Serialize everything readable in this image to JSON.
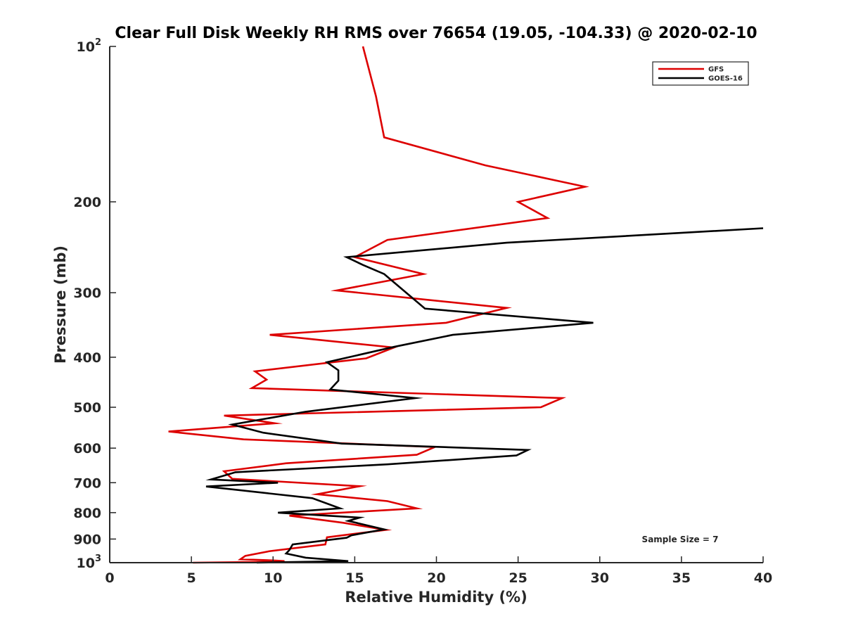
{
  "chart_data": {
    "type": "line",
    "title": "Clear Full Disk Weekly RH RMS over 76654 (19.05, -104.33) @ 2020-02-10",
    "xlabel": "Relative Humidity (%)",
    "ylabel": "Pressure (mb)",
    "xlim": [
      0,
      40
    ],
    "ylim": [
      100,
      1000
    ],
    "yscale": "log",
    "y_reversed": true,
    "xticks": [
      0,
      5,
      10,
      15,
      20,
      25,
      30,
      35,
      40
    ],
    "xtick_labels": [
      "0",
      "5",
      "10",
      "15",
      "20",
      "25",
      "30",
      "35",
      "40"
    ],
    "yticks": [
      100,
      200,
      300,
      400,
      500,
      600,
      700,
      800,
      900,
      1000
    ],
    "ytick_labels": [
      {
        "base": "10",
        "exp": "2"
      },
      {
        "base": "200",
        "exp": ""
      },
      {
        "base": "300",
        "exp": ""
      },
      {
        "base": "400",
        "exp": ""
      },
      {
        "base": "500",
        "exp": ""
      },
      {
        "base": "600",
        "exp": ""
      },
      {
        "base": "700",
        "exp": ""
      },
      {
        "base": "800",
        "exp": ""
      },
      {
        "base": "900",
        "exp": ""
      },
      {
        "base": "10",
        "exp": "3"
      }
    ],
    "legend_position": "top-right",
    "annotation": "Sample Size = 7",
    "series": [
      {
        "name": "GFS",
        "color": "#dd0000",
        "points": [
          [
            15.5,
            100
          ],
          [
            16.3,
            125
          ],
          [
            16.8,
            150
          ],
          [
            23.0,
            170
          ],
          [
            29.1,
            187
          ],
          [
            25.0,
            200
          ],
          [
            26.8,
            215
          ],
          [
            17.0,
            237
          ],
          [
            15.0,
            256
          ],
          [
            19.2,
            276
          ],
          [
            13.9,
            297
          ],
          [
            24.3,
            321
          ],
          [
            20.6,
            343
          ],
          [
            9.8,
            362
          ],
          [
            17.4,
            383
          ],
          [
            15.7,
            402
          ],
          [
            8.9,
            426
          ],
          [
            9.6,
            442
          ],
          [
            8.7,
            459
          ],
          [
            27.7,
            480
          ],
          [
            26.4,
            500
          ],
          [
            7.0,
            519
          ],
          [
            10.1,
            537
          ],
          [
            3.6,
            557
          ],
          [
            8.2,
            577
          ],
          [
            19.9,
            597
          ],
          [
            18.8,
            618
          ],
          [
            10.8,
            642
          ],
          [
            7.0,
            665
          ],
          [
            7.5,
            688
          ],
          [
            15.3,
            711
          ],
          [
            12.7,
            737
          ],
          [
            17.0,
            760
          ],
          [
            18.8,
            785
          ],
          [
            11.0,
            811
          ],
          [
            14.3,
            837
          ],
          [
            16.9,
            864
          ],
          [
            13.3,
            893
          ],
          [
            13.2,
            922
          ],
          [
            9.8,
            950
          ],
          [
            8.3,
            970
          ],
          [
            8.0,
            985
          ],
          [
            10.0,
            990
          ],
          [
            10.7,
            993
          ],
          [
            10.0,
            996
          ],
          [
            5.1,
            1000
          ]
        ]
      },
      {
        "name": "GOES-16",
        "color": "#000000",
        "points": [
          [
            40.0,
            225
          ],
          [
            24.3,
            240
          ],
          [
            14.5,
            256
          ],
          [
            15.5,
            265
          ],
          [
            16.8,
            276
          ],
          [
            19.3,
            322
          ],
          [
            29.6,
            343
          ],
          [
            21.0,
            362
          ],
          [
            17.4,
            382
          ],
          [
            13.3,
            409
          ],
          [
            14.0,
            424
          ],
          [
            14.0,
            444
          ],
          [
            13.5,
            462
          ],
          [
            18.7,
            480
          ],
          [
            12.0,
            510
          ],
          [
            7.5,
            540
          ],
          [
            9.4,
            560
          ],
          [
            14.2,
            588
          ],
          [
            25.6,
            605
          ],
          [
            24.9,
            620
          ],
          [
            17.0,
            645
          ],
          [
            7.7,
            668
          ],
          [
            6.2,
            690
          ],
          [
            10.3,
            700
          ],
          [
            5.9,
            712
          ],
          [
            12.4,
            750
          ],
          [
            14.1,
            785
          ],
          [
            10.3,
            800
          ],
          [
            15.3,
            818
          ],
          [
            14.6,
            830
          ],
          [
            16.8,
            862
          ],
          [
            14.8,
            885
          ],
          [
            14.5,
            895
          ],
          [
            11.2,
            922
          ],
          [
            11.0,
            945
          ],
          [
            10.8,
            960
          ],
          [
            12.0,
            978
          ],
          [
            14.6,
            993
          ],
          [
            9.0,
            1000
          ]
        ]
      }
    ]
  }
}
